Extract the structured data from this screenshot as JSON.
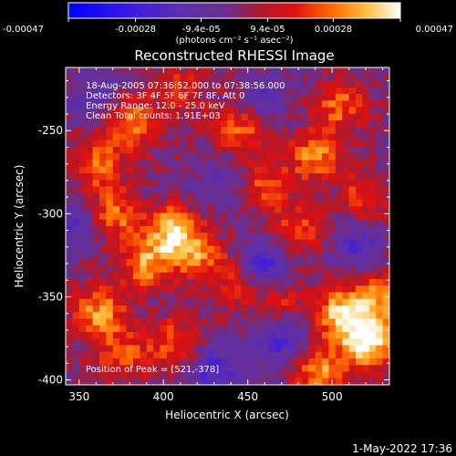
{
  "colorbar": {
    "ticks": [
      {
        "value": -0.00047,
        "label": "-0.00047"
      },
      {
        "value": -0.00028,
        "label": "-0.00028"
      },
      {
        "value": -9.4e-05,
        "label": "-9.4e-05"
      },
      {
        "value": 9.4e-05,
        "label": "9.4e-05"
      },
      {
        "value": 0.00028,
        "label": "0.00028"
      },
      {
        "value": 0.00047,
        "label": "0.00047"
      }
    ],
    "min": -0.00047,
    "max": 0.00047,
    "units": "(photons cm⁻² s⁻¹ asec⁻²)"
  },
  "chart_data": {
    "type": "heatmap",
    "title": "Reconstructed RHESSI Image",
    "xlabel": "Heliocentric X (arcsec)",
    "ylabel": "Heliocentric Y (arcsec)",
    "xlim": [
      342,
      534
    ],
    "ylim": [
      -403,
      -212
    ],
    "xticks": [
      350,
      400,
      450,
      500
    ],
    "yticks": [
      -250,
      -300,
      -350,
      -400
    ],
    "annotations": [
      "18-Aug-2005 07:36:52.000 to 07:38:56.000",
      "Detectors: 3F 4F 5F 6F 7F 8F, Att 0",
      "Energy Range: 12.0 - 25.0 keV",
      "Clean      Total counts: 1.91E+03"
    ],
    "peak_label": "Position of Peak = [521,-378]",
    "peak": [
      521,
      -378
    ],
    "grid": false,
    "colors": {
      "negative": "#3a28d8",
      "neutral": "#6a2f8c",
      "positive_low": "#c01818",
      "positive_mid": "#ff7a00",
      "positive_high": "#fff2a0"
    },
    "hotspots": [
      {
        "x": 521,
        "y": -378,
        "intensity": 0.00047
      },
      {
        "x": 505,
        "y": -360,
        "intensity": 0.0004
      },
      {
        "x": 492,
        "y": -395,
        "intensity": 0.00032
      },
      {
        "x": 530,
        "y": -350,
        "intensity": 0.0003
      },
      {
        "x": 405,
        "y": -310,
        "intensity": 0.00036
      },
      {
        "x": 390,
        "y": -330,
        "intensity": 0.0003
      },
      {
        "x": 420,
        "y": -325,
        "intensity": 0.00028
      },
      {
        "x": 380,
        "y": -245,
        "intensity": 0.00032
      },
      {
        "x": 360,
        "y": -270,
        "intensity": 0.00026
      },
      {
        "x": 370,
        "y": -300,
        "intensity": 0.0003
      },
      {
        "x": 362,
        "y": -360,
        "intensity": 0.00033
      },
      {
        "x": 375,
        "y": -385,
        "intensity": 0.00022
      },
      {
        "x": 405,
        "y": -378,
        "intensity": 0.00024
      },
      {
        "x": 445,
        "y": -250,
        "intensity": 0.00026
      },
      {
        "x": 460,
        "y": -282,
        "intensity": 0.00022
      },
      {
        "x": 490,
        "y": -265,
        "intensity": 0.0003
      },
      {
        "x": 505,
        "y": -235,
        "intensity": 0.00026
      },
      {
        "x": 520,
        "y": -290,
        "intensity": 0.00022
      },
      {
        "x": 480,
        "y": -310,
        "intensity": 0.00024
      },
      {
        "x": 445,
        "y": -340,
        "intensity": 0.0002
      },
      {
        "x": 470,
        "y": -355,
        "intensity": 0.00018
      },
      {
        "x": 410,
        "y": -225,
        "intensity": 0.00018
      }
    ],
    "coldspots": [
      {
        "x": 460,
        "y": -330,
        "intensity": -0.0003
      },
      {
        "x": 470,
        "y": -375,
        "intensity": -0.00026
      },
      {
        "x": 430,
        "y": -395,
        "intensity": -0.00022
      },
      {
        "x": 360,
        "y": -230,
        "intensity": -0.00018
      },
      {
        "x": 350,
        "y": -305,
        "intensity": -0.0002
      },
      {
        "x": 460,
        "y": -230,
        "intensity": -0.00016
      },
      {
        "x": 515,
        "y": -318,
        "intensity": -0.00018
      },
      {
        "x": 435,
        "y": -280,
        "intensity": -0.00014
      }
    ]
  },
  "footer": {
    "date": "1-May-2022 17:36"
  }
}
